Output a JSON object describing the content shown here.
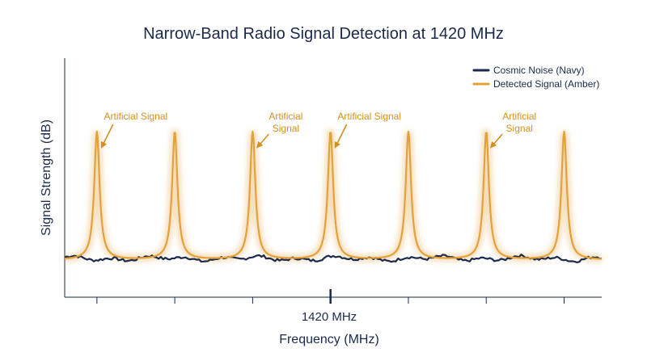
{
  "chart_data": {
    "type": "line",
    "title": "Narrow-Band Radio Signal Detection at 1420 MHz",
    "xlabel": "Frequency (MHz)",
    "ylabel": "Signal Strength (dB)",
    "x_tick_labels": [
      "1420 MHz"
    ],
    "x_ticks_count": 7,
    "grid": false,
    "legend_position": "top-right",
    "series": [
      {
        "name": "Cosmic Noise (Navy)",
        "color": "#1b2a4a",
        "kind": "noise",
        "level": 0.05
      },
      {
        "name": "Detected Signal (Amber)",
        "color": "#e3a13a",
        "kind": "peaks",
        "peak_positions": [
          0.06,
          0.205,
          0.35,
          0.495,
          0.64,
          0.785,
          0.93
        ],
        "peak_value": 1.0,
        "baseline": 0.0
      }
    ],
    "annotations": [
      {
        "text": "Artificial Signal",
        "lines": [
          "Artificial Signal"
        ],
        "peak_index": 0
      },
      {
        "text": "Artificial Signal",
        "lines": [
          "Artificial",
          "Signal"
        ],
        "peak_index": 2
      },
      {
        "text": "Artificial Signal",
        "lines": [
          "Artificial Signal"
        ],
        "peak_index": 3
      },
      {
        "text": "Artificial Signal",
        "lines": [
          "Artificial",
          "Signal"
        ],
        "peak_index": 5
      }
    ],
    "colors": {
      "navy": "#1b2a4a",
      "amber": "#e3a13a",
      "annotation": "#d4901f"
    }
  }
}
